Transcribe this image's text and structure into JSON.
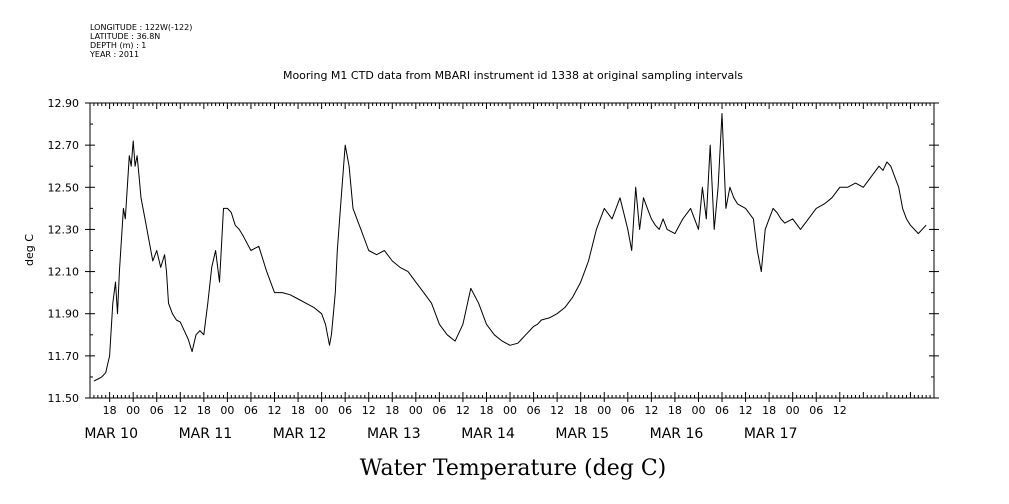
{
  "meta_lines": [
    "LONGITUDE : 122W(-122)",
    "LATITUDE : 36.8N",
    "DEPTH (m) : 1",
    "YEAR : 2011"
  ],
  "chart_data": {
    "type": "line",
    "title": "Mooring M1 CTD data from MBARI instrument id 1338 at original sampling intervals",
    "xlabel": "Water Temperature (deg C)",
    "ylabel": "deg C",
    "ylim": [
      11.5,
      12.9
    ],
    "yticks": [
      "11.50",
      "11.70",
      "11.90",
      "12.10",
      "12.30",
      "12.50",
      "12.70",
      "12.90"
    ],
    "xlim_hours": [
      -11,
      204
    ],
    "xtick_labels": [
      "18",
      "00",
      "06",
      "12",
      "18",
      "00",
      "06",
      "12",
      "18",
      "00",
      "06",
      "12",
      "18",
      "00",
      "06",
      "12",
      "18",
      "00",
      "06",
      "12",
      "18",
      "00",
      "06",
      "12",
      "18",
      "00",
      "06",
      "12",
      "18",
      "00",
      "06",
      "12"
    ],
    "day_labels": [
      "MAR 10",
      "MAR 11",
      "MAR 12",
      "MAR 13",
      "MAR 14",
      "MAR 15",
      "MAR 16",
      "MAR 17"
    ],
    "grid": false,
    "line_color": "#000000",
    "series": [
      {
        "x": [
          -10.0,
          -9.0,
          -8.0,
          -7.0,
          -6.0,
          -5.2,
          -4.5,
          -4.0,
          -3.5,
          -3.0,
          -2.5,
          -2.0,
          -1.5,
          -1.0,
          -0.5,
          0.0,
          0.5,
          1.0,
          1.5,
          2.0,
          3.0,
          4.0,
          5.0,
          6.0,
          7.0,
          8.0,
          8.5,
          9.0,
          10.0,
          11.0,
          12.0,
          13.0,
          14.0,
          15.0,
          16.0,
          17.0,
          18.0,
          19.0,
          20.0,
          21.0,
          22.0,
          23.0,
          24.0,
          25.0,
          26.0,
          27.0,
          28.0,
          30.0,
          32.0,
          34.0,
          36.0,
          38.0,
          40.0,
          42.0,
          44.0,
          46.0,
          48.0,
          49.0,
          50.0,
          50.5,
          51.0,
          51.5,
          52.0,
          53.0,
          54.0,
          55.0,
          56.0,
          57.0,
          58.0,
          59.0,
          60.0,
          62.0,
          64.0,
          66.0,
          68.0,
          70.0,
          72.0,
          74.0,
          76.0,
          78.0,
          80.0,
          82.0,
          84.0,
          86.0,
          88.0,
          90.0,
          92.0,
          94.0,
          96.0,
          98.0,
          99.0,
          100.0,
          101.0,
          102.0,
          103.0,
          104.0,
          106.0,
          108.0,
          110.0,
          112.0,
          114.0,
          116.0,
          118.0,
          120.0,
          122.0,
          124.0,
          126.0,
          127.0,
          128.0,
          129.0,
          130.0,
          131.0,
          132.0,
          133.0,
          134.0,
          135.0,
          136.0,
          138.0,
          140.0,
          142.0,
          144.0,
          145.0,
          146.0,
          147.0,
          148.0,
          149.0,
          150.0,
          151.0,
          152.0,
          153.0,
          154.0,
          156.0,
          158.0,
          159.0,
          160.0,
          161.0,
          162.0,
          163.0,
          164.0,
          165.0,
          166.0,
          168.0,
          170.0,
          172.0,
          174.0,
          176.0,
          178.0,
          180.0,
          182.0,
          184.0,
          186.0,
          188.0,
          190.0,
          191.0,
          192.0,
          193.0,
          194.0,
          195.0,
          196.0,
          197.0,
          198.0,
          199.0,
          200.0,
          201.0,
          202.0
        ],
        "y": [
          11.58,
          11.59,
          11.6,
          11.62,
          11.7,
          11.95,
          12.05,
          11.9,
          12.1,
          12.25,
          12.4,
          12.35,
          12.5,
          12.65,
          12.6,
          12.72,
          12.6,
          12.65,
          12.55,
          12.45,
          12.35,
          12.25,
          12.15,
          12.2,
          12.12,
          12.18,
          12.1,
          11.95,
          11.9,
          11.87,
          11.86,
          11.82,
          11.78,
          11.72,
          11.8,
          11.82,
          11.8,
          11.95,
          12.12,
          12.2,
          12.05,
          12.4,
          12.4,
          12.38,
          12.32,
          12.3,
          12.27,
          12.2,
          12.22,
          12.1,
          12.0,
          12.0,
          11.99,
          11.97,
          11.95,
          11.93,
          11.9,
          11.85,
          11.75,
          11.8,
          11.9,
          12.0,
          12.2,
          12.45,
          12.7,
          12.6,
          12.4,
          12.35,
          12.3,
          12.25,
          12.2,
          12.18,
          12.2,
          12.15,
          12.12,
          12.1,
          12.05,
          12.0,
          11.95,
          11.85,
          11.8,
          11.77,
          11.85,
          12.02,
          11.95,
          11.85,
          11.8,
          11.77,
          11.75,
          11.76,
          11.78,
          11.8,
          11.82,
          11.84,
          11.85,
          11.87,
          11.88,
          11.9,
          11.93,
          11.98,
          12.05,
          12.15,
          12.3,
          12.4,
          12.35,
          12.45,
          12.3,
          12.2,
          12.5,
          12.3,
          12.45,
          12.4,
          12.35,
          12.32,
          12.3,
          12.35,
          12.3,
          12.28,
          12.35,
          12.4,
          12.3,
          12.5,
          12.35,
          12.7,
          12.3,
          12.5,
          12.85,
          12.4,
          12.5,
          12.45,
          12.42,
          12.4,
          12.35,
          12.2,
          12.1,
          12.3,
          12.35,
          12.4,
          12.38,
          12.35,
          12.33,
          12.35,
          12.3,
          12.35,
          12.4,
          12.42,
          12.45,
          12.5,
          12.5,
          12.52,
          12.5,
          12.55,
          12.6,
          12.58,
          12.62,
          12.6,
          12.55,
          12.5,
          12.4,
          12.35,
          12.32,
          12.3,
          12.28,
          12.3,
          12.32
        ]
      }
    ]
  }
}
